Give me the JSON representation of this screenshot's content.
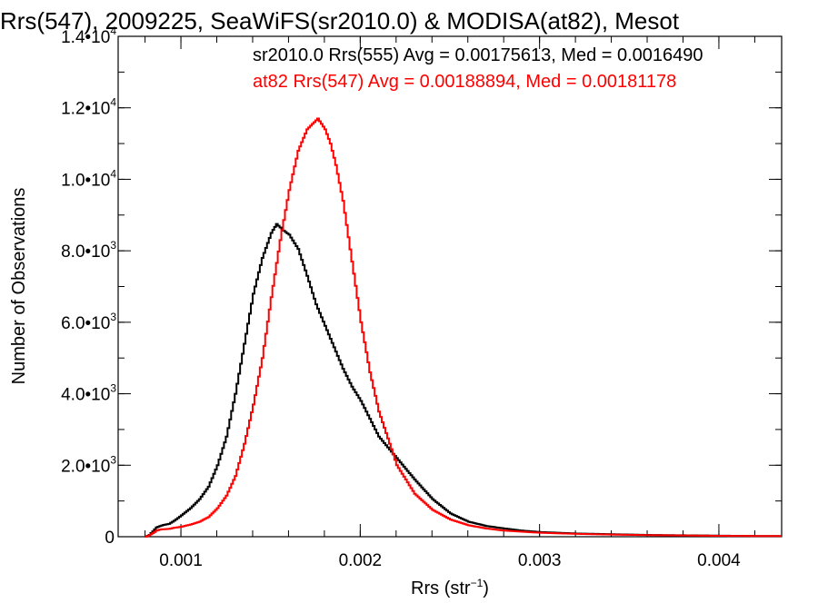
{
  "chart_data": {
    "type": "line",
    "title": "Rrs(547), 2009225, SeaWiFS(sr2010.0) & MODISA(at82), Mesot",
    "annotations": [
      {
        "text": "sr2010.0 Rrs(555) Avg = 0.00175613, Med = 0.0016490",
        "color": "#000000"
      },
      {
        "text": "at82 Rrs(547) Avg = 0.00188894, Med = 0.00181178",
        "color": "#ff0000"
      }
    ],
    "xlabel": "Rrs (str",
    "xlabel_sup": "−1",
    "xlabel_close": ")",
    "ylabel": "Number of Observations",
    "xlim": [
      0.00065,
      0.00435
    ],
    "ylim": [
      0,
      14000
    ],
    "x_ticks": [
      {
        "value": 0.001,
        "label": "0.001"
      },
      {
        "value": 0.002,
        "label": "0.002"
      },
      {
        "value": 0.003,
        "label": "0.003"
      },
      {
        "value": 0.004,
        "label": "0.004"
      }
    ],
    "y_ticks": [
      {
        "value": 0,
        "mant": "0",
        "exp": ""
      },
      {
        "value": 2000,
        "mant": "2.0•10",
        "exp": "3"
      },
      {
        "value": 4000,
        "mant": "4.0•10",
        "exp": "3"
      },
      {
        "value": 6000,
        "mant": "6.0•10",
        "exp": "3"
      },
      {
        "value": 8000,
        "mant": "8.0•10",
        "exp": "3"
      },
      {
        "value": 10000,
        "mant": "1.0•10",
        "exp": "4"
      },
      {
        "value": 12000,
        "mant": "1.2•10",
        "exp": "4"
      },
      {
        "value": 14000,
        "mant": "1.4•10",
        "exp": "4"
      }
    ],
    "x_minor_step": 0.0002,
    "y_minor_step": 1000,
    "grid": false,
    "series": [
      {
        "color": "#000000",
        "x": [
          0.0008,
          0.00082,
          0.00084,
          0.00086,
          0.00088,
          0.0009,
          0.00093,
          0.00096,
          0.001,
          0.00105,
          0.0011,
          0.00115,
          0.0012,
          0.00125,
          0.0013,
          0.00135,
          0.0014,
          0.00145,
          0.0015,
          0.00153,
          0.00156,
          0.0016,
          0.00165,
          0.0017,
          0.00175,
          0.0018,
          0.00185,
          0.0019,
          0.00195,
          0.002,
          0.0021,
          0.0022,
          0.0023,
          0.0024,
          0.0025,
          0.0026,
          0.0027,
          0.0028,
          0.0029,
          0.003,
          0.0032,
          0.0034,
          0.0036,
          0.0038,
          0.004,
          0.0042,
          0.00435
        ],
        "y": [
          0,
          50,
          150,
          260,
          300,
          330,
          360,
          450,
          600,
          800,
          1050,
          1400,
          2000,
          2800,
          4000,
          5400,
          6800,
          7800,
          8500,
          8750,
          8600,
          8450,
          8050,
          7300,
          6500,
          5900,
          5300,
          4700,
          4200,
          3800,
          2800,
          2200,
          1600,
          1050,
          650,
          420,
          300,
          230,
          170,
          130,
          90,
          70,
          50,
          40,
          30,
          20,
          20
        ]
      },
      {
        "color": "#ff0000",
        "x": [
          0.0008,
          0.00082,
          0.00084,
          0.00086,
          0.00088,
          0.0009,
          0.00093,
          0.00096,
          0.001,
          0.00105,
          0.0011,
          0.00115,
          0.0012,
          0.00125,
          0.0013,
          0.00135,
          0.0014,
          0.00145,
          0.0015,
          0.00155,
          0.0016,
          0.00165,
          0.0017,
          0.00173,
          0.00176,
          0.0018,
          0.00183,
          0.00186,
          0.0019,
          0.00195,
          0.002,
          0.00205,
          0.0021,
          0.0022,
          0.0023,
          0.0024,
          0.0025,
          0.0026,
          0.0027,
          0.0028,
          0.003,
          0.0032,
          0.0034,
          0.0036,
          0.0038,
          0.004,
          0.0042,
          0.00435
        ],
        "y": [
          0,
          40,
          100,
          170,
          200,
          210,
          220,
          250,
          280,
          340,
          420,
          550,
          800,
          1150,
          1700,
          2600,
          3700,
          5000,
          6700,
          8300,
          9700,
          10800,
          11400,
          11550,
          11700,
          11400,
          11000,
          10400,
          9400,
          7700,
          6000,
          4600,
          3500,
          2000,
          1200,
          750,
          480,
          320,
          230,
          170,
          110,
          80,
          60,
          45,
          35,
          25,
          20,
          20
        ]
      }
    ]
  }
}
